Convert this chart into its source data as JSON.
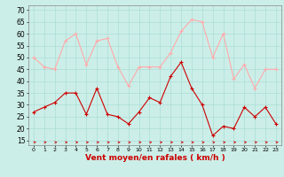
{
  "x": [
    0,
    1,
    2,
    3,
    4,
    5,
    6,
    7,
    8,
    9,
    10,
    11,
    12,
    13,
    14,
    15,
    16,
    17,
    18,
    19,
    20,
    21,
    22,
    23
  ],
  "wind_mean": [
    27,
    29,
    31,
    35,
    35,
    26,
    37,
    26,
    25,
    22,
    27,
    33,
    31,
    42,
    48,
    37,
    30,
    17,
    21,
    20,
    29,
    25,
    29,
    22
  ],
  "wind_gust": [
    50,
    46,
    45,
    57,
    60,
    47,
    57,
    58,
    46,
    38,
    46,
    46,
    46,
    52,
    61,
    66,
    65,
    50,
    60,
    41,
    47,
    37,
    45,
    45
  ],
  "bg_color": "#cceee8",
  "grid_color": "#aaddd8",
  "mean_color": "#cc0000",
  "gust_color": "#ffaaaa",
  "xlabel": "Vent moyen/en rafales ( km/h )",
  "xlabel_color": "#cc0000",
  "ylabel_ticks": [
    15,
    20,
    25,
    30,
    35,
    40,
    45,
    50,
    55,
    60,
    65,
    70
  ],
  "ylim": [
    13,
    72
  ],
  "xlim": [
    -0.5,
    23.5
  ]
}
